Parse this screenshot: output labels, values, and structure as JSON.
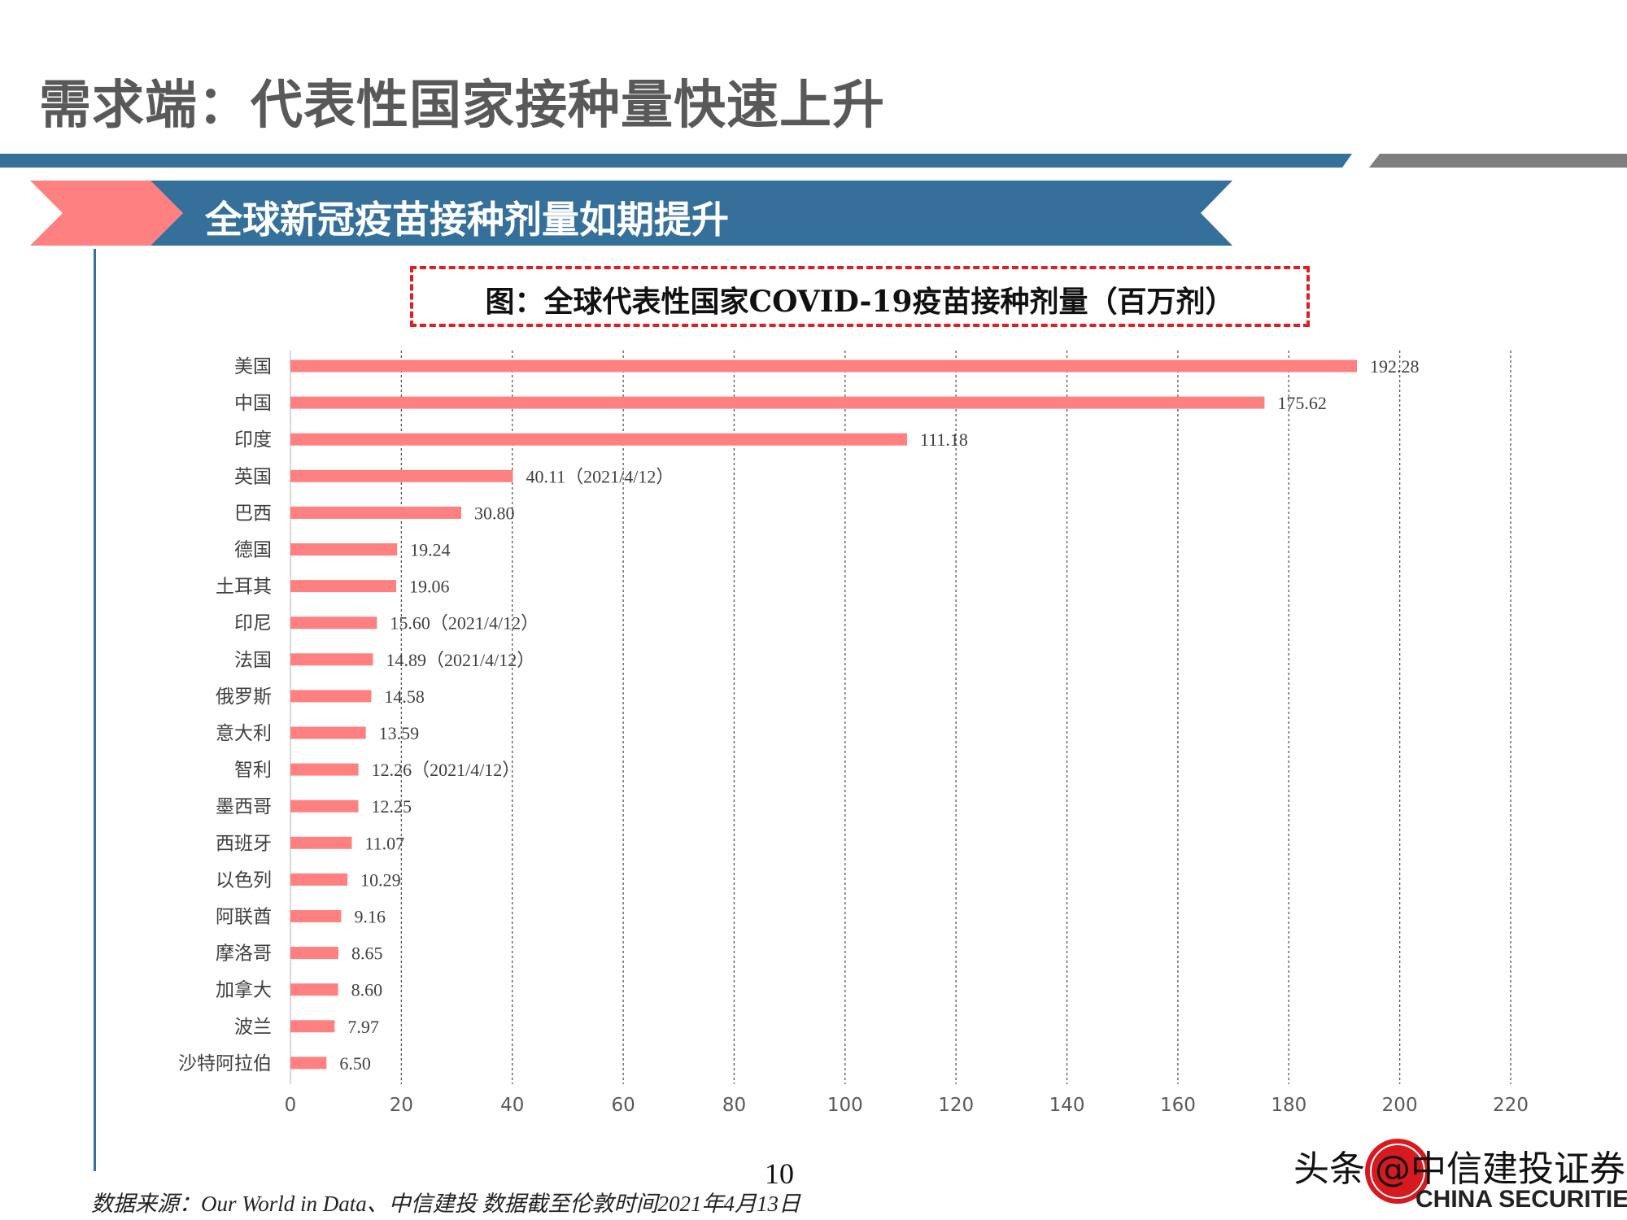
{
  "header": {
    "title": "需求端：代表性国家接种量快速上升"
  },
  "banner": {
    "text": "全球新冠疫苗接种剂量如期提升"
  },
  "figure": {
    "title": "图：全球代表性国家COVID-19疫苗接种剂量（百万剂）"
  },
  "chart_data": {
    "type": "bar",
    "orientation": "horizontal",
    "title": "图：全球代表性国家COVID-19疫苗接种剂量（百万剂）",
    "categories": [
      "美国",
      "中国",
      "印度",
      "英国",
      "巴西",
      "德国",
      "土耳其",
      "印尼",
      "法国",
      "俄罗斯",
      "意大利",
      "智利",
      "墨西哥",
      "西班牙",
      "以色列",
      "阿联酋",
      "摩洛哥",
      "加拿大",
      "波兰",
      "沙特阿拉伯"
    ],
    "values": [
      192.28,
      175.62,
      111.18,
      40.11,
      30.8,
      19.24,
      19.06,
      15.6,
      14.89,
      14.58,
      13.59,
      12.26,
      12.25,
      11.07,
      10.29,
      9.16,
      8.65,
      8.6,
      7.97,
      6.5
    ],
    "data_labels": [
      "192.28",
      "175.62",
      "111.18",
      "40.11（2021/4/12）",
      "30.80",
      "19.24",
      "19.06",
      "15.60（2021/4/12）",
      "14.89（2021/4/12）",
      "14.58",
      "13.59",
      "12.26（2021/4/12）",
      "12.25",
      "11.07",
      "10.29",
      "9.16",
      "8.65",
      "8.60",
      "7.97",
      "6.50"
    ],
    "xlim": [
      0,
      220
    ],
    "xticks": [
      "0",
      "20",
      "40",
      "60",
      "80",
      "100",
      "120",
      "140",
      "160",
      "180",
      "200",
      "220"
    ],
    "grid": "vertical dashed",
    "bar_color": "#ff8080"
  },
  "footer": {
    "page": "10",
    "source": "数据来源：Our World in Data、中信建投  数据截至伦敦时间2021年4月13日"
  },
  "watermark": {
    "text": "头条 @中信建投证券 CHINA SECURITIES"
  },
  "colors": {
    "blue": "#35709a",
    "pink": "#ff8080",
    "gray": "#7f7f7f",
    "red": "#e01e24"
  }
}
